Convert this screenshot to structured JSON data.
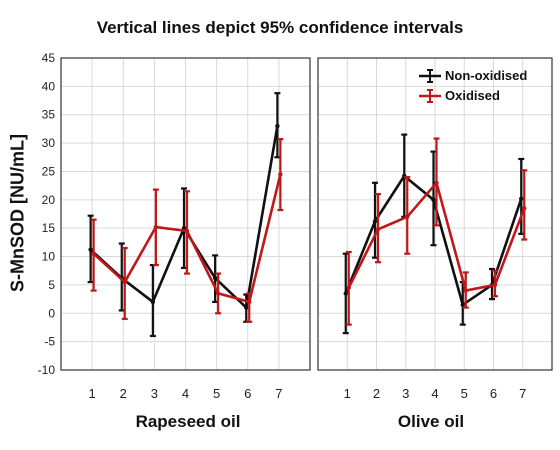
{
  "chart_data": {
    "type": "line",
    "title": "Vertical lines depict 95% confidence intervals",
    "ylabel": "S-MnSOD [NU/mL]",
    "ylim": [
      -10,
      45
    ],
    "yticks": [
      -10,
      -5,
      0,
      5,
      10,
      15,
      20,
      25,
      30,
      35,
      40,
      45
    ],
    "grid": true,
    "legend_position": "top-right",
    "series_colors": {
      "Non-oxidised": "#111111",
      "Oxidised": "#c0181a"
    },
    "panels": [
      {
        "xlabel": "Rapeseed oil",
        "categories": [
          "1",
          "2",
          "3",
          "4",
          "5",
          "6",
          "7"
        ],
        "series": [
          {
            "name": "Non-oxidised",
            "values": [
              11.2,
              6.2,
              2.0,
              15.0,
              6.2,
              1.0,
              33.0
            ],
            "lower": [
              5.5,
              0.5,
              -4.0,
              8.0,
              2.0,
              -1.5,
              27.5
            ],
            "upper": [
              17.2,
              12.3,
              8.5,
              22.0,
              10.2,
              3.3,
              38.8
            ]
          },
          {
            "name": "Oxidised",
            "values": [
              10.5,
              5.5,
              15.2,
              14.5,
              3.5,
              2.0,
              24.5
            ],
            "lower": [
              4.0,
              -1.0,
              8.5,
              7.0,
              0.0,
              -1.5,
              18.2
            ],
            "upper": [
              16.5,
              11.5,
              21.8,
              21.5,
              7.0,
              3.5,
              30.7
            ]
          }
        ]
      },
      {
        "xlabel": "Olive oil",
        "categories": [
          "1",
          "2",
          "3",
          "4",
          "5",
          "6",
          "7"
        ],
        "series": [
          {
            "name": "Non-oxidised",
            "values": [
              3.5,
              16.2,
              24.2,
              20.0,
              1.5,
              5.0,
              20.2
            ],
            "lower": [
              -3.5,
              9.8,
              17.0,
              12.0,
              -2.0,
              2.5,
              14.0
            ],
            "upper": [
              10.5,
              23.0,
              31.5,
              28.5,
              5.5,
              7.8,
              27.2
            ]
          },
          {
            "name": "Oxidised",
            "values": [
              4.5,
              14.8,
              17.0,
              23.0,
              4.0,
              5.0,
              18.5
            ],
            "lower": [
              -2.0,
              9.0,
              10.5,
              15.5,
              1.0,
              3.0,
              13.0
            ],
            "upper": [
              10.8,
              21.0,
              24.0,
              30.8,
              7.2,
              7.5,
              25.2
            ]
          }
        ]
      }
    ],
    "legend": [
      "Non-oxidised",
      "Oxidised"
    ]
  }
}
